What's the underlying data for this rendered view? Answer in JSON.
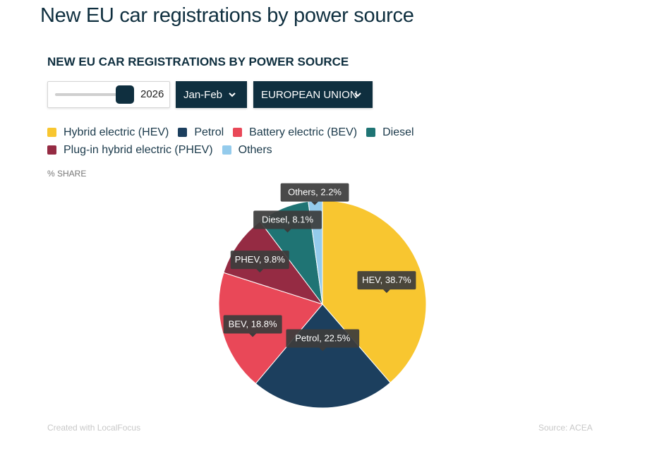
{
  "page": {
    "title": "New EU car registrations by power source"
  },
  "controls": {
    "year": "2026",
    "year_fraction": 1.0,
    "period": "Jan-Feb",
    "region": "EUROPEAN UNION"
  },
  "unit_label": "% SHARE",
  "footer": {
    "credit": "Created with LocalFocus",
    "source": "Source:  ACEA"
  },
  "legend": [
    {
      "label": "Hybrid electric (HEV)",
      "color": "#f8c630"
    },
    {
      "label": "Petrol",
      "color": "#1c3f5e"
    },
    {
      "label": "Battery electric (BEV)",
      "color": "#e94858"
    },
    {
      "label": "Diesel",
      "color": "#1f7474"
    },
    {
      "label": "Plug-in hybrid electric (PHEV)",
      "color": "#952b43"
    },
    {
      "label": "Others",
      "color": "#94cbec"
    }
  ],
  "chart_data": {
    "type": "pie",
    "title": "NEW EU CAR REGISTRATIONS BY POWER SOURCE",
    "unit": "% SHARE",
    "slices": [
      {
        "label": "HEV",
        "value": 38.7,
        "color": "#f8c630"
      },
      {
        "label": "Petrol",
        "value": 22.5,
        "color": "#1c3f5e"
      },
      {
        "label": "BEV",
        "value": 18.8,
        "color": "#e94858"
      },
      {
        "label": "PHEV",
        "value": 9.8,
        "color": "#952b43"
      },
      {
        "label": "Diesel",
        "value": 8.1,
        "color": "#1f7474"
      },
      {
        "label": "Others",
        "value": 2.2,
        "color": "#94cbec"
      }
    ],
    "tooltip_color": "#3c3c3c"
  }
}
